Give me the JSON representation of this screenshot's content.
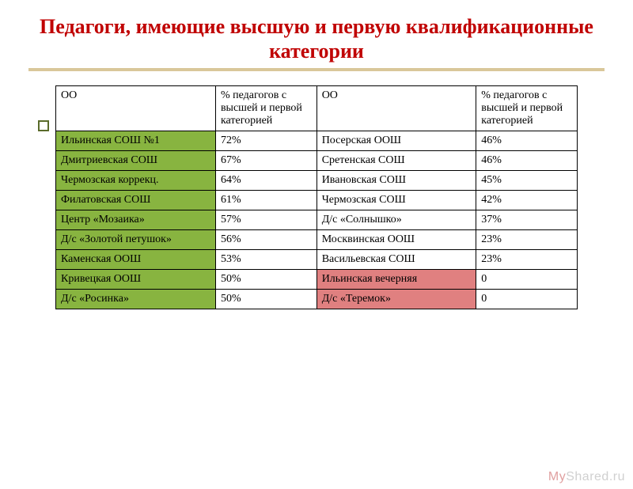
{
  "title": "Педагоги, имеющие высшую и первую квалификационные категории",
  "columns": {
    "oo_left": "ОО",
    "pct_left": "% педагогов с высшей и первой категорией",
    "oo_right": "ОО",
    "pct_right": "% педагогов с высшей и первой категорией"
  },
  "rows": [
    {
      "l_name": "Ильинская СОШ №1",
      "l_pct": "72%",
      "l_color": "green",
      "r_name": "Посерская ООШ",
      "r_pct": "46%",
      "r_color": "none"
    },
    {
      "l_name": "Дмитриевская СОШ",
      "l_pct": "67%",
      "l_color": "green",
      "r_name": "Сретенская СОШ",
      "r_pct": "46%",
      "r_color": "none"
    },
    {
      "l_name": "Чермозская коррекц.",
      "l_pct": "64%",
      "l_color": "green",
      "r_name": "Ивановская СОШ",
      "r_pct": "45%",
      "r_color": "none"
    },
    {
      "l_name": "Филатовская СОШ",
      "l_pct": "61%",
      "l_color": "green",
      "r_name": "Чермозская СОШ",
      "r_pct": "42%",
      "r_color": "none"
    },
    {
      "l_name": "Центр «Мозаика»",
      "l_pct": "57%",
      "l_color": "green",
      "r_name": "Д/с «Солнышко»",
      "r_pct": "37%",
      "r_color": "none"
    },
    {
      "l_name": "Д/с «Золотой петушок»",
      "l_pct": "56%",
      "l_color": "green",
      "r_name": "Москвинская ООШ",
      "r_pct": "23%",
      "r_color": "none"
    },
    {
      "l_name": "Каменская ООШ",
      "l_pct": "53%",
      "l_color": "green",
      "r_name": "Васильевская СОШ",
      "r_pct": "23%",
      "r_color": "none"
    },
    {
      "l_name": "Кривецкая ООШ",
      "l_pct": "50%",
      "l_color": "green",
      "r_name": "Ильинская вечерняя",
      "r_pct": "0",
      "r_color": "red"
    },
    {
      "l_name": "Д/с «Росинка»",
      "l_pct": "50%",
      "l_color": "green",
      "r_name": "Д/с «Теремок»",
      "r_pct": "0",
      "r_color": "red"
    }
  ],
  "colors": {
    "green": "#88b440",
    "red": "#e08080",
    "title": "#c00000",
    "divider": "#d9c79a",
    "bullet_border": "#5a6b2a"
  },
  "watermark": {
    "prefix": "My",
    "suffix": "Shared.ru"
  }
}
